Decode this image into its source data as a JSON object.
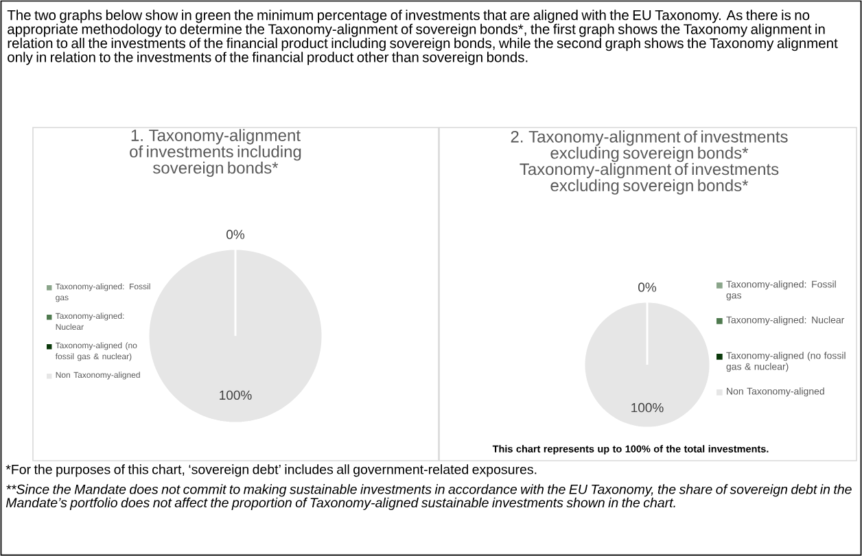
{
  "chart_data": [
    {
      "type": "pie",
      "title": "1. Taxonomy-alignment of investments including sovereign bonds*",
      "categories": [
        "Taxonomy-aligned: Fossil gas",
        "Taxonomy-aligned: Nuclear",
        "Taxonomy-aligned (no fossil gas & nuclear)",
        "Non Taxonomy-aligned"
      ],
      "values": [
        0,
        0,
        0,
        100
      ],
      "colors": [
        "#8aa58a",
        "#4f7a4f",
        "#0b3a0b",
        "#e6e6e6"
      ],
      "value_labels": [
        "0%",
        null,
        null,
        "100%"
      ],
      "legend": "left",
      "annotations": [
        "The two graphs below show in green the minimum percentage of investments that are aligned with the EU Taxonomy. As there is no appropriate methodology to determine the Taxonomy-alignment of sovereign bonds*, the first graph shows the Taxonomy alignment in relation to all the investments of the financial product including sovereign bonds, while the second graph shows the Taxonomy alignment only in relation to the investments of the financial product other than sovereign bonds.",
        "*For the purposes of this chart, ‘sovereign debt’ includes all government-related exposures.",
        "**Since the Mandate does not commit to making sustainable investments in accordance with the EU Taxonomy, the share of sovereign debt in the Mandate’s portfolio does not affect the proportion of Taxonomy-aligned sustainable investments shown in the chart."
      ]
    },
    {
      "type": "pie",
      "title": "2. Taxonomy-alignment of investments excluding sovereign bonds* Taxonomy-alignment of investments excluding sovereign bonds*",
      "categories": [
        "Taxonomy-aligned: Fossil gas",
        "Taxonomy-aligned: Nuclear",
        "Taxonomy-aligned (no fossil gas & nuclear)",
        "Non Taxonomy-aligned"
      ],
      "values": [
        0,
        0,
        0,
        100
      ],
      "colors": [
        "#8aa58a",
        "#4f7a4f",
        "#0b3a0b",
        "#e6e6e6"
      ],
      "value_labels": [
        "0%",
        null,
        null,
        "100%"
      ],
      "legend": "right",
      "annotations": [
        "This chart represents up to 100% of the total investments."
      ]
    }
  ]
}
